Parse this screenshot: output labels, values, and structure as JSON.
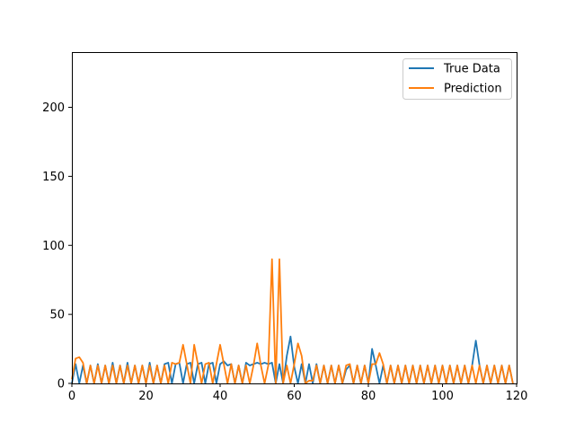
{
  "chart_data": {
    "type": "line",
    "title": "",
    "xlabel": "",
    "ylabel": "",
    "xlim": [
      0,
      120
    ],
    "ylim": [
      0,
      240
    ],
    "x_ticks": [
      0,
      20,
      40,
      60,
      80,
      100,
      120
    ],
    "y_ticks": [
      0,
      50,
      100,
      150,
      200
    ],
    "grid": false,
    "legend_position": "top-right",
    "series": [
      {
        "name": "True Data",
        "color": "#1f77b4",
        "x": [
          0,
          1,
          2,
          3,
          4,
          5,
          6,
          7,
          8,
          9,
          10,
          11,
          12,
          13,
          14,
          15,
          16,
          17,
          18,
          19,
          20,
          21,
          22,
          23,
          24,
          25,
          26,
          27,
          28,
          29,
          30,
          31,
          32,
          33,
          34,
          35,
          36,
          37,
          38,
          39,
          40,
          41,
          42,
          43,
          44,
          45,
          46,
          47,
          48,
          49,
          50,
          51,
          52,
          53,
          54,
          55,
          56,
          57,
          58,
          59,
          60,
          61,
          62,
          63,
          64,
          65,
          66,
          67,
          68,
          69,
          70,
          71,
          72,
          73,
          74,
          75,
          76,
          77,
          78,
          79,
          80,
          81,
          82,
          83,
          84,
          85,
          86,
          87,
          88,
          89,
          90,
          91,
          92,
          93,
          94,
          95,
          96,
          97,
          98,
          99,
          100,
          101,
          102,
          103,
          104,
          105,
          106,
          107,
          108,
          109,
          110,
          111,
          112,
          113,
          114,
          115,
          116,
          117,
          118,
          119
        ],
        "y": [
          0,
          14,
          0,
          13,
          0,
          13,
          0,
          14,
          0,
          13,
          0,
          15,
          0,
          13,
          0,
          15,
          0,
          13,
          0,
          13,
          0,
          15,
          0,
          13,
          0,
          14,
          15,
          0,
          14,
          15,
          0,
          14,
          15,
          0,
          14,
          15,
          0,
          14,
          15,
          0,
          14,
          16,
          13,
          14,
          0,
          13,
          0,
          15,
          13,
          14,
          15,
          14,
          15,
          14,
          15,
          0,
          14,
          0,
          20,
          34,
          12,
          0,
          14,
          0,
          14,
          0,
          14,
          0,
          13,
          0,
          13,
          0,
          13,
          0,
          10,
          13,
          0,
          13,
          0,
          13,
          0,
          25,
          13,
          0,
          13,
          0,
          13,
          0,
          13,
          0,
          13,
          0,
          13,
          0,
          13,
          0,
          13,
          0,
          13,
          0,
          13,
          0,
          13,
          0,
          13,
          0,
          13,
          0,
          13,
          31,
          13,
          0,
          13,
          0,
          13,
          0,
          13,
          0,
          13,
          0
        ]
      },
      {
        "name": "Prediction",
        "color": "#ff7f0e",
        "x": [
          0,
          1,
          2,
          3,
          4,
          5,
          6,
          7,
          8,
          9,
          10,
          11,
          12,
          13,
          14,
          15,
          16,
          17,
          18,
          19,
          20,
          21,
          22,
          23,
          24,
          25,
          26,
          27,
          28,
          29,
          30,
          31,
          32,
          33,
          34,
          35,
          36,
          37,
          38,
          39,
          40,
          41,
          42,
          43,
          44,
          45,
          46,
          47,
          48,
          49,
          50,
          51,
          52,
          53,
          54,
          55,
          56,
          57,
          58,
          59,
          60,
          61,
          62,
          63,
          64,
          65,
          66,
          67,
          68,
          69,
          70,
          71,
          72,
          73,
          74,
          75,
          76,
          77,
          78,
          79,
          80,
          81,
          82,
          83,
          84,
          85,
          86,
          87,
          88,
          89,
          90,
          91,
          92,
          93,
          94,
          95,
          96,
          97,
          98,
          99,
          100,
          101,
          102,
          103,
          104,
          105,
          106,
          107,
          108,
          109,
          110,
          111,
          112,
          113,
          114,
          115,
          116,
          117,
          118,
          119
        ],
        "y": [
          3,
          18,
          19,
          15,
          0,
          13,
          0,
          13,
          0,
          13,
          0,
          13,
          0,
          13,
          0,
          13,
          0,
          13,
          0,
          13,
          0,
          13,
          0,
          13,
          0,
          13,
          0,
          15,
          14,
          15,
          28,
          14,
          0,
          28,
          14,
          0,
          14,
          15,
          0,
          14,
          28,
          14,
          0,
          14,
          0,
          13,
          0,
          13,
          0,
          13,
          29,
          13,
          0,
          13,
          90,
          0,
          90,
          0,
          13,
          0,
          14,
          29,
          20,
          0,
          2,
          2,
          13,
          0,
          13,
          0,
          13,
          0,
          13,
          0,
          13,
          14,
          0,
          13,
          0,
          13,
          0,
          14,
          14,
          22,
          14,
          0,
          13,
          0,
          13,
          0,
          13,
          0,
          13,
          0,
          13,
          0,
          13,
          0,
          13,
          0,
          13,
          0,
          13,
          0,
          13,
          0,
          13,
          0,
          13,
          0,
          13,
          0,
          13,
          0,
          13,
          0,
          13,
          0,
          13,
          0
        ]
      }
    ]
  }
}
